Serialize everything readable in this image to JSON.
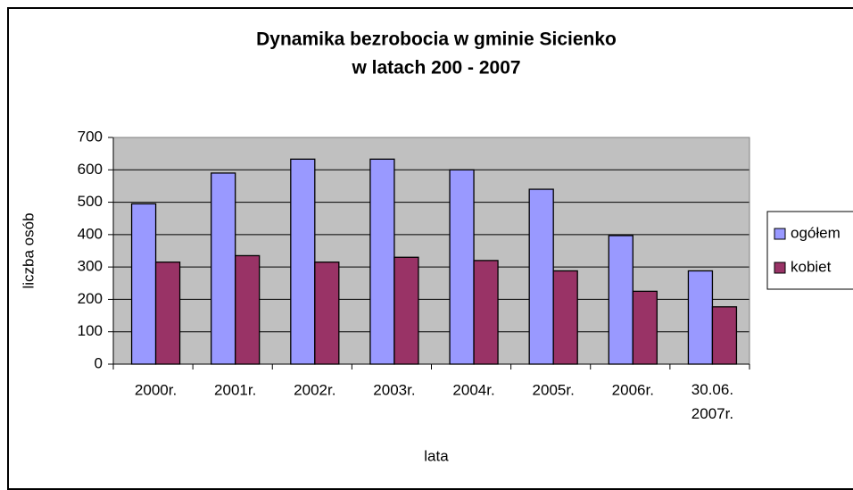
{
  "chart_data": {
    "type": "bar",
    "title": [
      "Dynamika bezrobocia w gminie Sicienko",
      "w latach 200 - 2007"
    ],
    "x_label": "lata",
    "y_label": "liczba osób",
    "categories": [
      "2000r.",
      "2001r.",
      "2002r.",
      "2003r.",
      "2004r.",
      "2005r.",
      "2006r.",
      "30.06. 2007r."
    ],
    "series": [
      {
        "name": "ogółem",
        "color": "#9999ff",
        "values": [
          495,
          590,
          633,
          633,
          600,
          540,
          397,
          288
        ]
      },
      {
        "name": "kobiet",
        "color": "#993366",
        "values": [
          315,
          335,
          315,
          330,
          320,
          288,
          225,
          177
        ]
      }
    ],
    "ylim": [
      0,
      700
    ],
    "yticks": [
      0,
      100,
      200,
      300,
      400,
      500,
      600,
      700
    ],
    "grid": true,
    "legend": "right"
  }
}
